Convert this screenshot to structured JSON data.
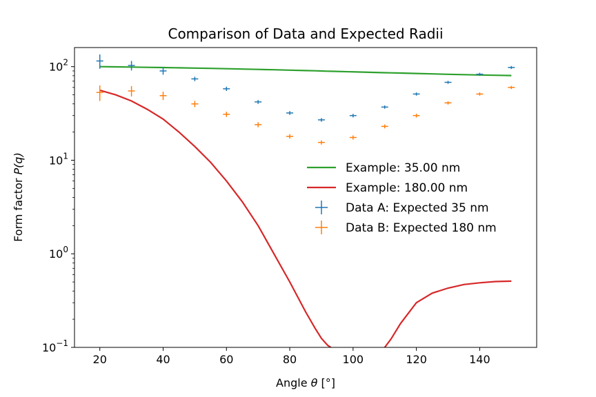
{
  "chart_data": {
    "type": "line",
    "title": "Comparison of Data and Expected Radii",
    "xlabel_text": "Angle ",
    "xlabel_symbol": "θ",
    "xlabel_unit": " [°]",
    "ylabel_text": "Form factor ",
    "ylabel_symbol": "P(q)",
    "xlim": [
      12,
      158
    ],
    "ylim": [
      0.1,
      160
    ],
    "yscale": "log",
    "grid": false,
    "legend_position": "center-right",
    "x_ticks": [
      20,
      40,
      60,
      80,
      100,
      120,
      140
    ],
    "x_tick_labels": [
      "20",
      "40",
      "60",
      "80",
      "100",
      "120",
      "140"
    ],
    "y_ticks": [
      0.1,
      1,
      10,
      100
    ],
    "y_tick_labels": [
      {
        "base": "10",
        "exp": "−1"
      },
      {
        "base": "10",
        "exp": "0"
      },
      {
        "base": "10",
        "exp": "1"
      },
      {
        "base": "10",
        "exp": "2"
      }
    ],
    "curve_x": [
      20,
      25,
      30,
      35,
      40,
      45,
      50,
      55,
      60,
      65,
      70,
      75,
      80,
      85,
      88,
      90,
      92,
      93,
      110,
      112,
      115,
      120,
      125,
      130,
      135,
      140,
      145,
      150
    ],
    "series": [
      {
        "name": "Example: 35.00 nm",
        "kind": "line",
        "color": "#2ca02c",
        "values": [
          100,
          99.5,
          99,
          98.4,
          97.8,
          97.2,
          96.5,
          95.8,
          95,
          94.2,
          93.4,
          92.6,
          91.7,
          90.8,
          90.3,
          89.9,
          89.5,
          89.3,
          86.2,
          85.9,
          85.4,
          84.5,
          83.7,
          82.9,
          82.2,
          81.5,
          80.9,
          80.3
        ]
      },
      {
        "name": "Example: 180.00 nm",
        "kind": "line",
        "color": "#d62728",
        "values": [
          56,
          50,
          43,
          35,
          27.5,
          20,
          14,
          9.5,
          6,
          3.6,
          2,
          1,
          0.5,
          0.24,
          0.16,
          0.125,
          0.105,
          0.1,
          0.1,
          0.123,
          0.18,
          0.3,
          0.38,
          0.43,
          0.47,
          0.49,
          0.505,
          0.51
        ]
      },
      {
        "name": "Data A: Expected 35 nm",
        "kind": "errorbar",
        "color": "#1f77b4",
        "x": [
          20,
          30,
          40,
          50,
          60,
          70,
          80,
          90,
          100,
          110,
          120,
          130,
          140,
          150
        ],
        "values": [
          115,
          103,
          90,
          74,
          58,
          42,
          32,
          27,
          30,
          37,
          51,
          68,
          83,
          98
        ],
        "yerr": [
          20,
          12,
          8,
          4,
          3,
          2,
          1.5,
          1.2,
          1.3,
          1.5,
          2,
          2.5,
          3,
          3.5
        ]
      },
      {
        "name": "Data B: Expected 180 nm",
        "kind": "errorbar",
        "color": "#ff7f0e",
        "x": [
          20,
          30,
          40,
          50,
          60,
          70,
          80,
          90,
          100,
          110,
          120,
          130,
          140,
          150
        ],
        "values": [
          53,
          55,
          49,
          40,
          31,
          24,
          18,
          15.5,
          17.5,
          23,
          30,
          41,
          51,
          60
        ],
        "yerr": [
          10,
          7,
          5,
          3,
          2,
          1.5,
          1,
          0.8,
          0.9,
          1.1,
          1.4,
          1.7,
          2,
          2.3
        ]
      }
    ]
  }
}
